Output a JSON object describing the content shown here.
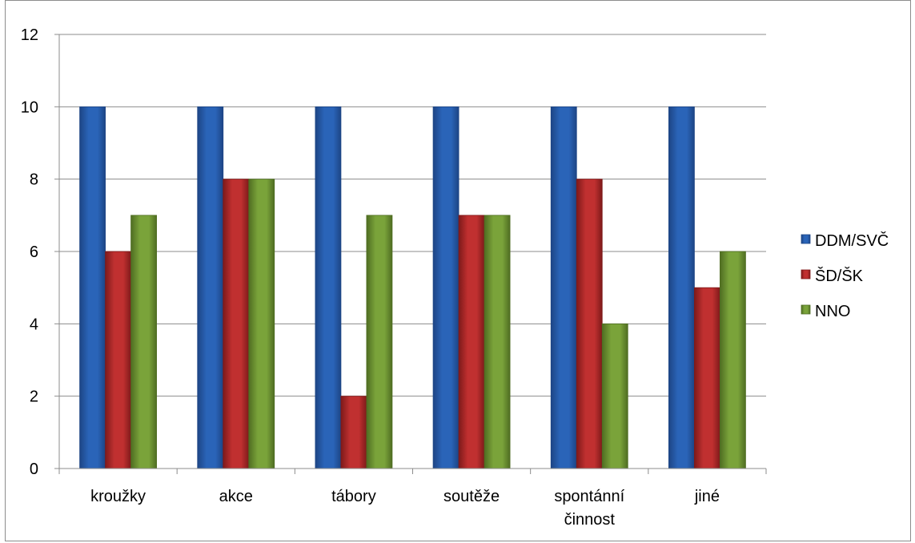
{
  "chart_data": {
    "type": "bar",
    "title": "",
    "xlabel": "",
    "ylabel": "",
    "categories": [
      [
        "kroužky"
      ],
      [
        "akce"
      ],
      [
        "tábory"
      ],
      [
        "soutěže"
      ],
      [
        "spontánní",
        "činnost"
      ],
      [
        "jiné"
      ]
    ],
    "series": [
      {
        "name": "DDM/SVČ",
        "values": [
          10,
          10,
          10,
          10,
          10,
          10
        ],
        "color": "#2a64b8",
        "edge": "#1d4585"
      },
      {
        "name": "ŠD/ŠK",
        "values": [
          6,
          8,
          2,
          7,
          8,
          5
        ],
        "color": "#c03030",
        "edge": "#7e1a1a"
      },
      {
        "name": "NNO",
        "values": [
          7,
          8,
          7,
          7,
          4,
          6
        ],
        "color": "#7aa33a",
        "edge": "#4f6d22"
      }
    ],
    "ylim": [
      0,
      12
    ],
    "yticks": [
      0,
      2,
      4,
      6,
      8,
      10,
      12
    ],
    "grid": true,
    "legend": "right"
  }
}
